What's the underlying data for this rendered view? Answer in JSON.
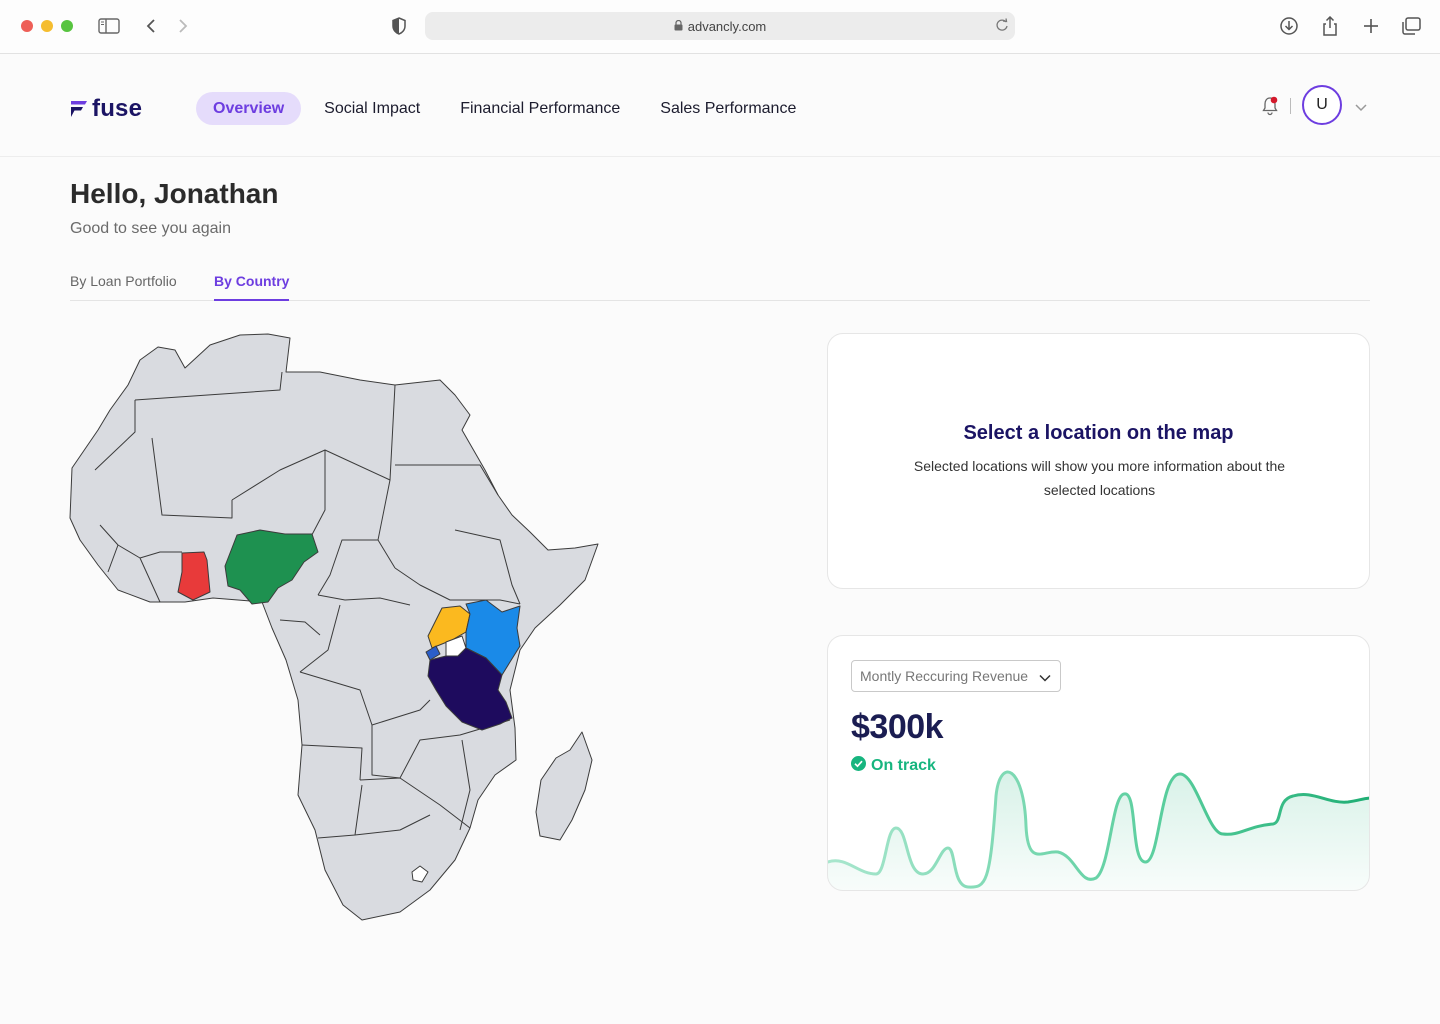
{
  "browser": {
    "url": "advancly.com"
  },
  "header": {
    "logo_text": "fuse",
    "nav": [
      {
        "label": "Overview",
        "active": true
      },
      {
        "label": "Social Impact",
        "active": false
      },
      {
        "label": "Financial Performance",
        "active": false
      },
      {
        "label": "Sales Performance",
        "active": false
      }
    ],
    "avatar_initial": "U",
    "has_notification": true
  },
  "greeting": {
    "title": "Hello, Jonathan",
    "subtitle": "Good to see you again"
  },
  "tabs": [
    {
      "label": "By Loan Portfolio",
      "active": false
    },
    {
      "label": "By Country",
      "active": true
    }
  ],
  "map": {
    "highlighted_countries": [
      {
        "country": "Ghana",
        "color": "#e83a3a"
      },
      {
        "country": "Nigeria",
        "color": "#1e9150"
      },
      {
        "country": "Uganda",
        "color": "#fbb91f"
      },
      {
        "country": "Kenya",
        "color": "#1a8ae8"
      },
      {
        "country": "Rwanda",
        "color": "#2b5ec9"
      },
      {
        "country": "Tanzania",
        "color": "#1e0b5e"
      }
    ],
    "base_color": "#d9dbe0",
    "border_color": "#3b3b3b"
  },
  "select_card": {
    "title": "Select a location on the map",
    "description": "Selected locations will show you more information about the selected locations"
  },
  "revenue_card": {
    "dropdown_value": "Montly Reccuring Revenue",
    "value": "$300k",
    "status": "On track",
    "status_color": "#17b57f",
    "line_color": "#27b57f"
  },
  "colors": {
    "accent": "#6d3de0",
    "accent_bg": "#e5dcfb",
    "brand_navy": "#1b1464"
  }
}
